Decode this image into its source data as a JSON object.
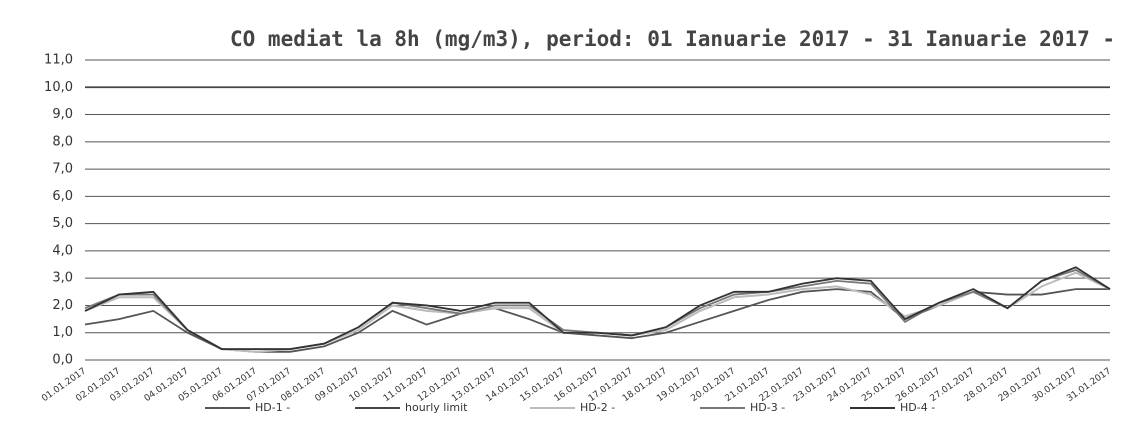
{
  "chart_data": {
    "type": "line",
    "title": "CO mediat la 8h (mg/m3), period: 01 Ianuarie 2017 - 31 Ianuarie 2017 -",
    "categories": [
      "01.01.2017",
      "02.01.2017",
      "03.01.2017",
      "04.01.2017",
      "05.01.2017",
      "06.01.2017",
      "07.01.2017",
      "08.01.2017",
      "09.01.2017",
      "10.01.2017",
      "11.01.2017",
      "12.01.2017",
      "13.01.2017",
      "14.01.2017",
      "15.01.2017",
      "16.01.2017",
      "17.01.2017",
      "18.01.2017",
      "19.01.2017",
      "20.01.2017",
      "21.01.2017",
      "22.01.2017",
      "23.01.2017",
      "24.01.2017",
      "25.01.2017",
      "26.01.2017",
      "27.01.2017",
      "28.01.2017",
      "29.01.2017",
      "30.01.2017",
      "31.01.2017"
    ],
    "series": [
      {
        "name": "HD-1 -",
        "color": "#555555",
        "values": [
          1.3,
          1.5,
          1.8,
          1.0,
          0.4,
          0.3,
          0.3,
          0.5,
          1.0,
          1.8,
          1.3,
          1.7,
          1.9,
          1.5,
          1.0,
          0.9,
          0.8,
          1.0,
          1.4,
          1.8,
          2.2,
          2.5,
          2.6,
          2.5,
          1.5,
          2.0,
          2.5,
          2.4,
          2.4,
          2.6,
          2.6
        ]
      },
      {
        "name": "hourly limit",
        "color": "#444444",
        "values": [
          10,
          10,
          10,
          10,
          10,
          10,
          10,
          10,
          10,
          10,
          10,
          10,
          10,
          10,
          10,
          10,
          10,
          10,
          10,
          10,
          10,
          10,
          10,
          10,
          10,
          10,
          10,
          10,
          10,
          10,
          10
        ]
      },
      {
        "name": "HD-2 -",
        "color": "#bbbbbb",
        "values": [
          1.8,
          2.3,
          2.3,
          1.1,
          0.4,
          0.3,
          0.4,
          0.6,
          1.1,
          2.0,
          1.8,
          1.7,
          1.9,
          1.9,
          1.0,
          1.0,
          0.9,
          1.1,
          1.8,
          2.3,
          2.4,
          2.6,
          2.7,
          2.4,
          1.6,
          2.0,
          2.5,
          1.9,
          2.7,
          3.2,
          2.6
        ]
      },
      {
        "name": "HD-3 -",
        "color": "#777777",
        "values": [
          1.9,
          2.4,
          2.4,
          1.1,
          0.4,
          0.4,
          0.4,
          0.6,
          1.2,
          2.1,
          1.9,
          1.7,
          2.0,
          2.0,
          1.1,
          1.0,
          0.9,
          1.2,
          1.9,
          2.4,
          2.5,
          2.7,
          2.9,
          2.8,
          1.4,
          2.1,
          2.5,
          1.9,
          2.9,
          3.3,
          2.6
        ]
      },
      {
        "name": "HD-4 -",
        "color": "#333333",
        "values": [
          1.8,
          2.4,
          2.5,
          1.1,
          0.4,
          0.4,
          0.4,
          0.6,
          1.2,
          2.1,
          2.0,
          1.8,
          2.1,
          2.1,
          1.0,
          1.0,
          0.9,
          1.2,
          2.0,
          2.5,
          2.5,
          2.8,
          3.0,
          2.9,
          1.5,
          2.1,
          2.6,
          1.9,
          2.9,
          3.4,
          2.6
        ]
      }
    ],
    "ylim": [
      0,
      11
    ],
    "yticks": [
      {
        "value": 0,
        "label": "0,0"
      },
      {
        "value": 1,
        "label": "1,0"
      },
      {
        "value": 2,
        "label": "2,0"
      },
      {
        "value": 3,
        "label": "3,0"
      },
      {
        "value": 4,
        "label": "4,0"
      },
      {
        "value": 5,
        "label": "5,0"
      },
      {
        "value": 6,
        "label": "6,0"
      },
      {
        "value": 7,
        "label": "7,0"
      },
      {
        "value": 8,
        "label": "8,0"
      },
      {
        "value": 9,
        "label": "9,0"
      },
      {
        "value": 10,
        "label": "10,0"
      },
      {
        "value": 11,
        "label": "11,0"
      }
    ],
    "grid": true
  }
}
